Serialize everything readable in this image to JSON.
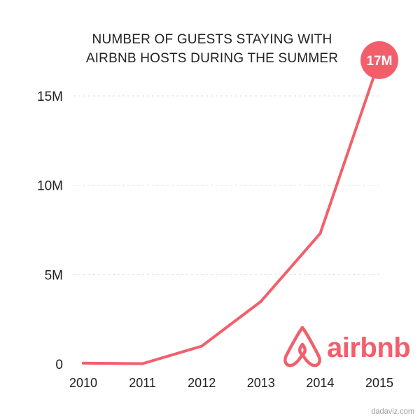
{
  "colors": {
    "line": "#f25f6b",
    "brand": "#f25f6b",
    "callout": "#f25f6b",
    "text": "#222222",
    "grid": "#dddddd"
  },
  "brand": {
    "name": "airbnb",
    "icon": "airbnb-belo-icon"
  },
  "credit": "dadaviz.com",
  "chart_data": {
    "type": "line",
    "title": [
      "NUMBER OF GUESTS STAYING WITH",
      "AIRBNB HOSTS DURING THE SUMMER"
    ],
    "xlabel": "",
    "ylabel": "",
    "x": [
      "2010",
      "2011",
      "2012",
      "2013",
      "2014",
      "2015"
    ],
    "series": [
      {
        "values": [
          47000,
          20000,
          1000000,
          3500000,
          7300000,
          17000000
        ]
      }
    ],
    "ylim": [
      0,
      17000000
    ],
    "y_ticks": [
      0,
      5000000,
      10000000,
      15000000
    ],
    "y_tick_labels": [
      "0",
      "5M",
      "10M",
      "15M"
    ],
    "grid": "horizontal-dashed",
    "annotation": {
      "label": "17M",
      "point_index": 5
    },
    "legend": "none"
  }
}
